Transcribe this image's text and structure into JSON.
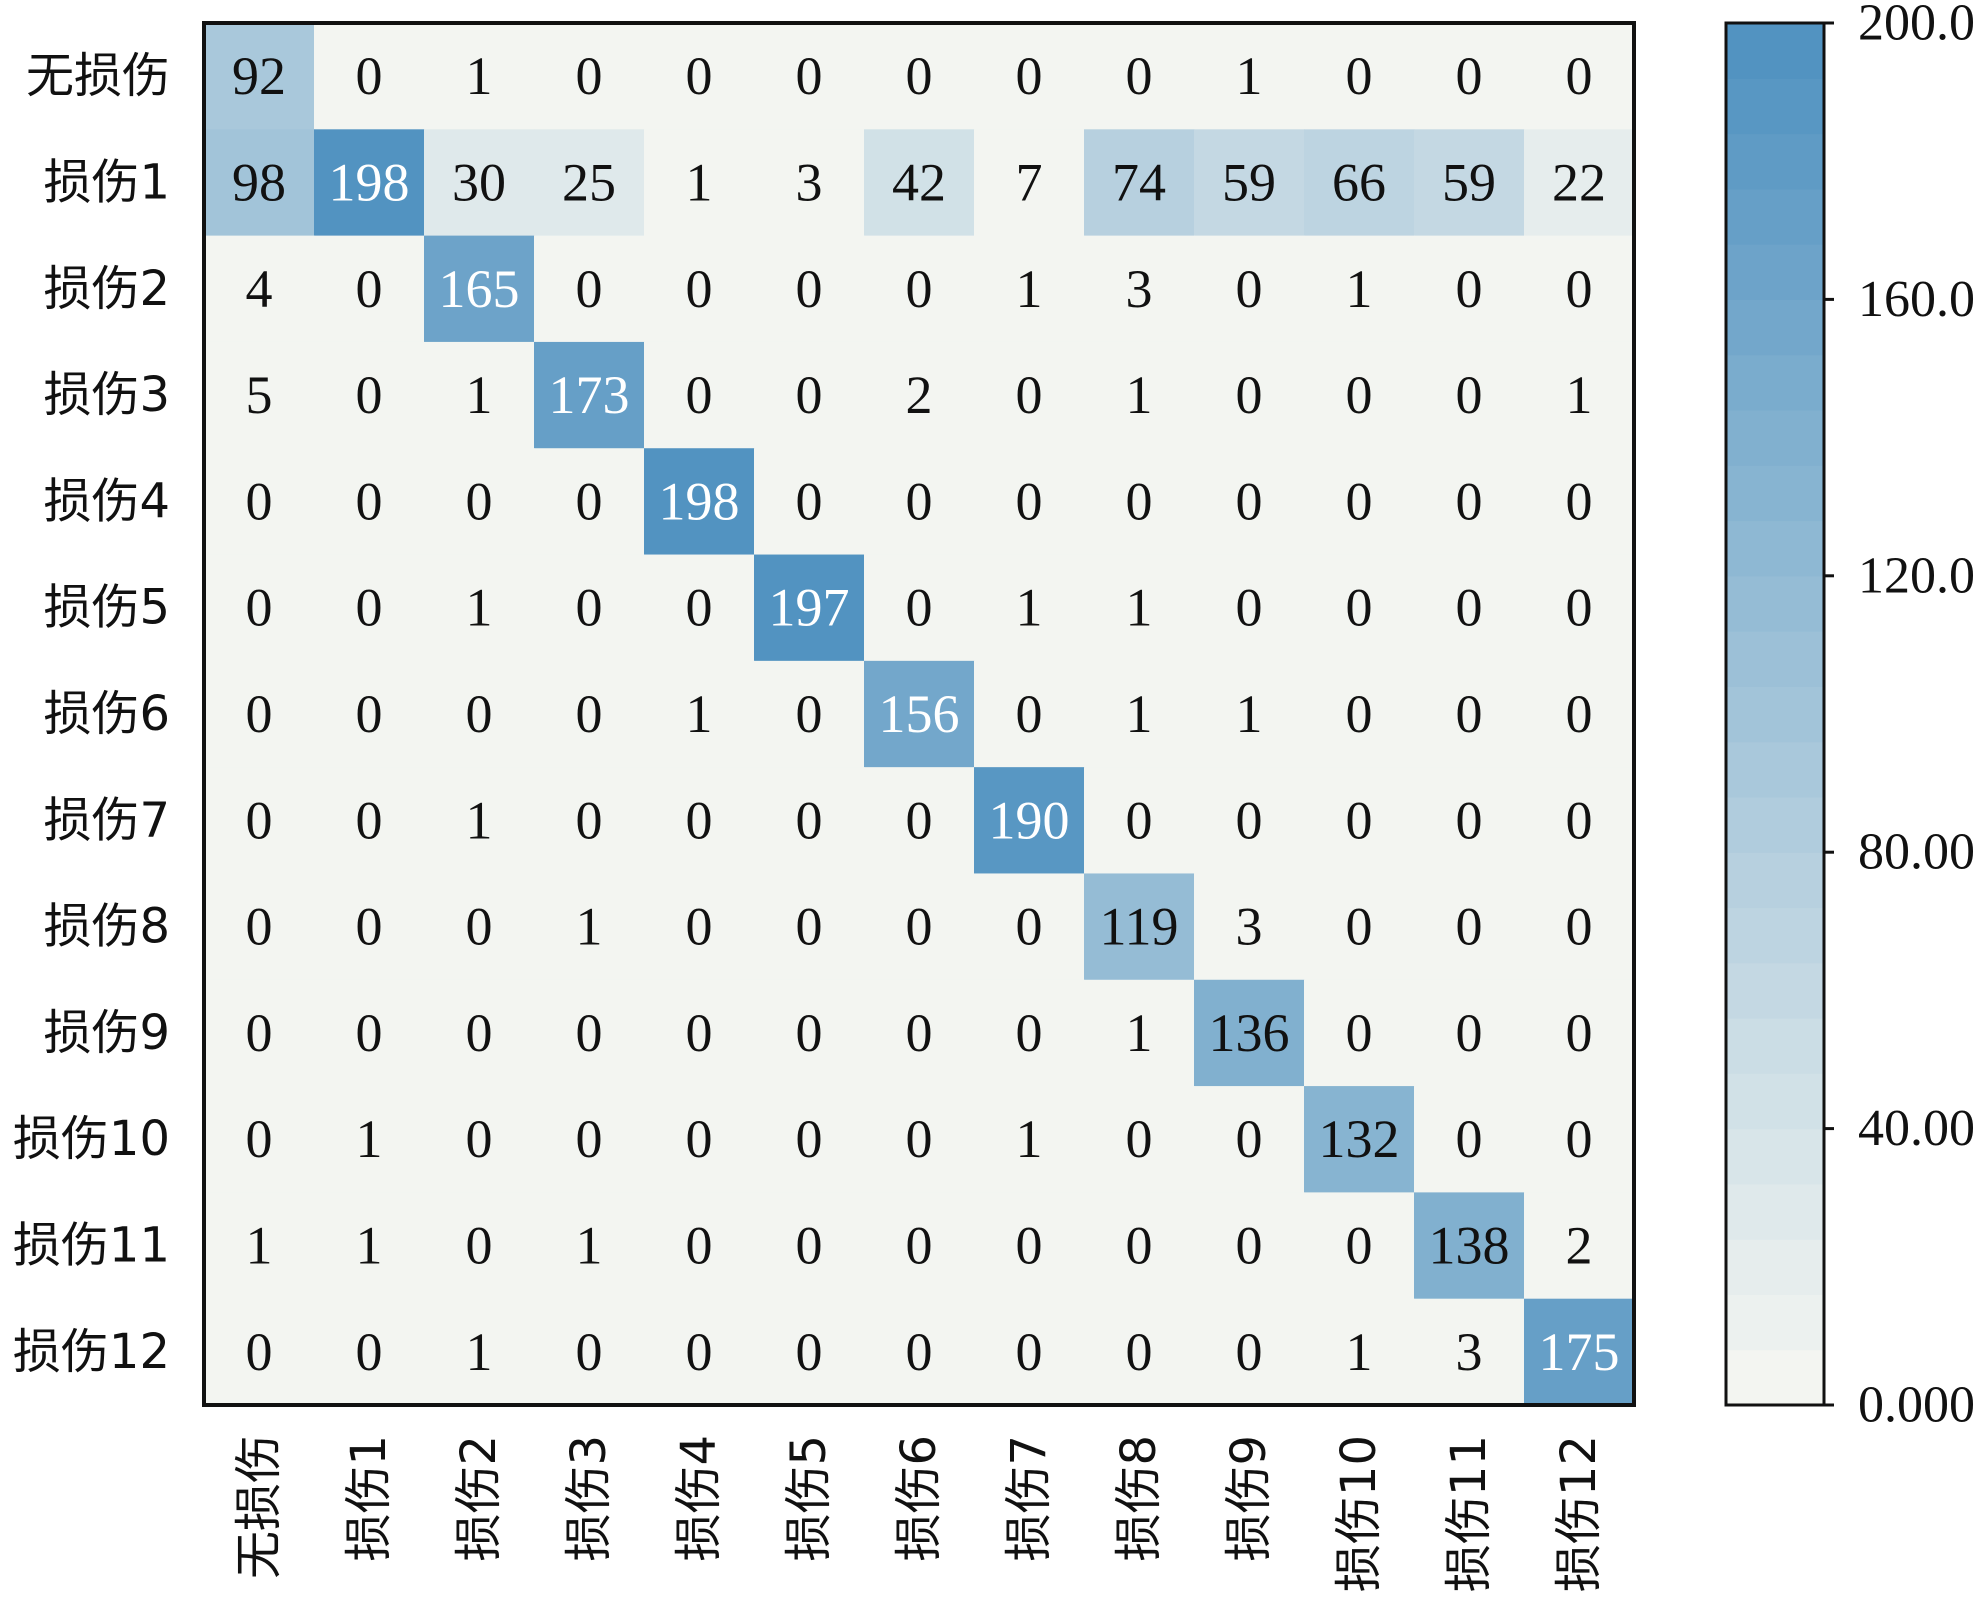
{
  "chart_data": {
    "type": "heatmap",
    "title": "",
    "xlabel": "",
    "ylabel": "",
    "rows": [
      "无损伤",
      "损伤1",
      "损伤2",
      "损伤3",
      "损伤4",
      "损伤5",
      "损伤6",
      "损伤7",
      "损伤8",
      "损伤9",
      "损伤10",
      "损伤11",
      "损伤12"
    ],
    "columns": [
      "无损伤",
      "损伤1",
      "损伤2",
      "损伤3",
      "损伤4",
      "损伤5",
      "损伤6",
      "损伤7",
      "损伤8",
      "损伤9",
      "损伤10",
      "损伤11",
      "损伤12"
    ],
    "values": [
      [
        92,
        0,
        1,
        0,
        0,
        0,
        0,
        0,
        0,
        1,
        0,
        0,
        0
      ],
      [
        98,
        198,
        30,
        25,
        1,
        3,
        42,
        7,
        74,
        59,
        66,
        59,
        22
      ],
      [
        4,
        0,
        165,
        0,
        0,
        0,
        0,
        1,
        3,
        0,
        1,
        0,
        0
      ],
      [
        5,
        0,
        1,
        173,
        0,
        0,
        2,
        0,
        1,
        0,
        0,
        0,
        1
      ],
      [
        0,
        0,
        0,
        0,
        198,
        0,
        0,
        0,
        0,
        0,
        0,
        0,
        0
      ],
      [
        0,
        0,
        1,
        0,
        0,
        197,
        0,
        1,
        1,
        0,
        0,
        0,
        0
      ],
      [
        0,
        0,
        0,
        0,
        1,
        0,
        156,
        0,
        1,
        1,
        0,
        0,
        0
      ],
      [
        0,
        0,
        1,
        0,
        0,
        0,
        0,
        190,
        0,
        0,
        0,
        0,
        0
      ],
      [
        0,
        0,
        0,
        1,
        0,
        0,
        0,
        0,
        119,
        3,
        0,
        0,
        0
      ],
      [
        0,
        0,
        0,
        0,
        0,
        0,
        0,
        0,
        1,
        136,
        0,
        0,
        0
      ],
      [
        0,
        1,
        0,
        0,
        0,
        0,
        0,
        1,
        0,
        0,
        132,
        0,
        0
      ],
      [
        1,
        1,
        0,
        1,
        0,
        0,
        0,
        0,
        0,
        0,
        0,
        138,
        2
      ],
      [
        0,
        0,
        1,
        0,
        0,
        0,
        0,
        0,
        0,
        0,
        1,
        3,
        175
      ]
    ],
    "value_range": [
      0,
      200
    ],
    "colorbar": {
      "ticks": [
        "200.0",
        "160.0",
        "120.0",
        "80.00",
        "40.00",
        "0.000"
      ],
      "tick_values": [
        200,
        160,
        120,
        80,
        40,
        0
      ]
    },
    "colors": {
      "low": "#f3f5f1",
      "high": "#4b8fbf"
    },
    "grid": false,
    "legend": "colorbar-right"
  }
}
